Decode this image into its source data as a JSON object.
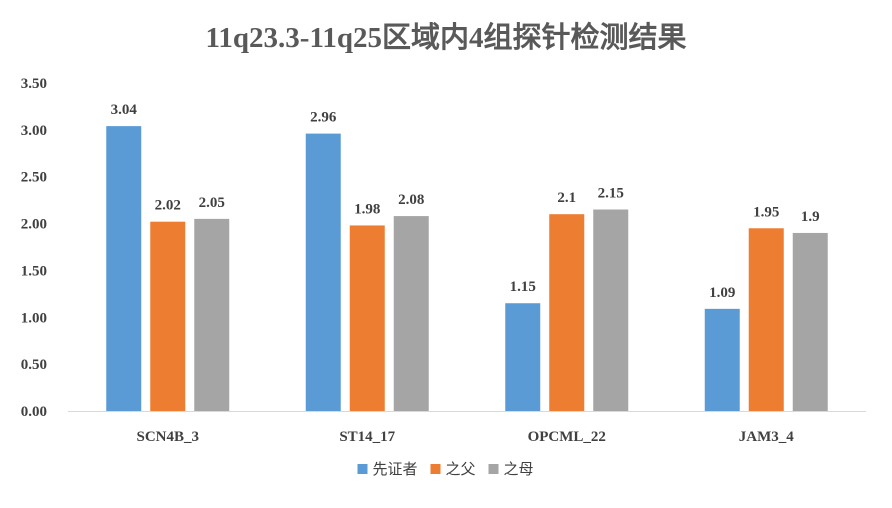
{
  "chart_data": {
    "type": "bar",
    "title": "11q23.3-11q25区域内4组探针检测结果",
    "xlabel": "",
    "ylabel": "",
    "ylim": [
      0,
      3.5
    ],
    "y_ticks": [
      "0.00",
      "0.50",
      "1.00",
      "1.50",
      "2.00",
      "2.50",
      "3.00",
      "3.50"
    ],
    "grid": false,
    "legend_position": "bottom",
    "categories": [
      "SCN4B_3",
      "ST14_17",
      "OPCML_22",
      "JAM3_4"
    ],
    "series": [
      {
        "name": "先证者",
        "color": "#5b9bd5",
        "values": [
          3.04,
          2.96,
          1.15,
          1.09
        ],
        "labels": [
          "3.04",
          "2.96",
          "1.15",
          "1.09"
        ]
      },
      {
        "name": "之父",
        "color": "#ed7d31",
        "values": [
          2.02,
          1.98,
          2.1,
          1.95
        ],
        "labels": [
          "2.02",
          "1.98",
          "2.1",
          "1.95"
        ]
      },
      {
        "name": "之母",
        "color": "#a5a5a5",
        "values": [
          2.05,
          2.08,
          2.15,
          1.9
        ],
        "labels": [
          "2.05",
          "2.08",
          "2.15",
          "1.9"
        ]
      }
    ]
  }
}
